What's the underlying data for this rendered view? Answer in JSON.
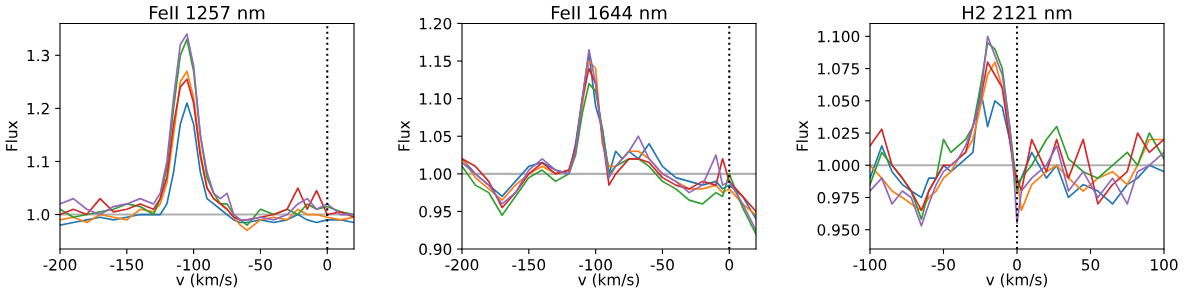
{
  "chart_data": [
    {
      "type": "line",
      "title": "FeII 1257 nm",
      "xlabel": "v (km/s)",
      "ylabel": "Flux",
      "x": [
        -200,
        -190,
        -180,
        -170,
        -160,
        -150,
        -140,
        -130,
        -125,
        -120,
        -115,
        -110,
        -105,
        -100,
        -95,
        -90,
        -85,
        -80,
        -75,
        -70,
        -65,
        -60,
        -50,
        -40,
        -30,
        -22,
        -15,
        -8,
        0,
        10,
        20
      ],
      "series": [
        {
          "color": "#1f77b4",
          "values": [
            0.98,
            0.985,
            0.99,
            0.995,
            0.99,
            0.995,
            1.0,
            1.0,
            1.0,
            1.02,
            1.08,
            1.17,
            1.21,
            1.17,
            1.08,
            1.03,
            1.02,
            1.01,
            1.0,
            0.99,
            0.985,
            0.985,
            0.99,
            0.985,
            0.99,
            1.0,
            0.99,
            0.985,
            0.99,
            0.99,
            0.985
          ]
        },
        {
          "color": "#ff7f0e",
          "values": [
            0.99,
            0.995,
            0.985,
            1.0,
            0.995,
            0.99,
            1.01,
            1.005,
            1.02,
            1.06,
            1.15,
            1.25,
            1.27,
            1.22,
            1.12,
            1.05,
            1.03,
            1.02,
            1.01,
            0.995,
            0.98,
            0.97,
            0.99,
            0.995,
            0.99,
            1.01,
            1.0,
            1.0,
            0.995,
            0.99,
            0.995
          ]
        },
        {
          "color": "#2ca02c",
          "values": [
            1.01,
            0.995,
            1.0,
            1.005,
            1.01,
            1.02,
            1.015,
            1.0,
            1.03,
            1.09,
            1.2,
            1.3,
            1.33,
            1.27,
            1.15,
            1.07,
            1.04,
            1.02,
            1.02,
            1.0,
            0.99,
            0.98,
            1.01,
            1.0,
            1.01,
            1.0,
            1.02,
            1.01,
            1.015,
            1.005,
            1.0
          ]
        },
        {
          "color": "#d62728",
          "values": [
            1.0,
            1.01,
            1.0,
            1.03,
            1.005,
            1.01,
            1.02,
            1.01,
            1.03,
            1.07,
            1.17,
            1.24,
            1.255,
            1.21,
            1.11,
            1.05,
            1.03,
            1.02,
            1.01,
            0.995,
            0.99,
            0.99,
            0.995,
            1.0,
            1.01,
            1.05,
            1.01,
            1.045,
            1.0,
            1.005,
            0.995
          ]
        },
        {
          "color": "#9467bd",
          "values": [
            1.02,
            1.03,
            1.01,
            1.0,
            1.015,
            1.02,
            1.03,
            1.02,
            1.04,
            1.1,
            1.22,
            1.32,
            1.34,
            1.28,
            1.15,
            1.08,
            1.04,
            1.03,
            1.04,
            1.0,
            0.99,
            0.99,
            0.995,
            0.99,
            1.0,
            1.02,
            1.03,
            1.01,
            1.02,
            1.0,
            1.0
          ]
        }
      ],
      "xlim": [
        -200,
        20
      ],
      "xticks": [
        -200,
        -150,
        -100,
        -50,
        0
      ],
      "ylim": [
        0.935,
        1.36
      ],
      "yticks": [
        {
          "value": 1.0,
          "label": "1.0"
        },
        1.1,
        1.2,
        1.3
      ],
      "ref_lines": [
        {
          "axis": "y",
          "value": 1,
          "color": "#b0b0b0",
          "line_style": "solid"
        },
        {
          "axis": "x",
          "value": 0,
          "color": "#000000",
          "line_style": "dotted"
        }
      ],
      "grid": false
    },
    {
      "type": "line",
      "title": "FeII 1644 nm",
      "xlabel": "v (km/s)",
      "ylabel": "Flux",
      "x": [
        -200,
        -190,
        -180,
        -170,
        -160,
        -150,
        -140,
        -130,
        -120,
        -115,
        -110,
        -105,
        -100,
        -95,
        -90,
        -85,
        -80,
        -75,
        -68,
        -60,
        -50,
        -40,
        -30,
        -20,
        -10,
        -5,
        0,
        10,
        20
      ],
      "series": [
        {
          "color": "#1f77b4",
          "values": [
            1.02,
            1.0,
            0.985,
            0.97,
            0.99,
            1.01,
            1.015,
            1.005,
            1.0,
            1.04,
            1.1,
            1.16,
            1.09,
            1.06,
            1.0,
            1.03,
            1.02,
            1.03,
            1.02,
            1.04,
            1.01,
            0.995,
            0.99,
            0.985,
            0.99,
            0.98,
            0.985,
            0.97,
            0.94
          ]
        },
        {
          "color": "#ff7f0e",
          "values": [
            1.02,
            0.995,
            0.98,
            0.965,
            0.985,
            1.0,
            1.01,
            1.0,
            1.005,
            1.03,
            1.09,
            1.15,
            1.14,
            1.04,
            1.01,
            1.01,
            1.02,
            1.03,
            1.03,
            1.02,
            1.0,
            0.99,
            0.98,
            0.98,
            0.985,
            0.975,
            0.98,
            0.96,
            0.945
          ]
        },
        {
          "color": "#2ca02c",
          "values": [
            1.01,
            0.985,
            0.975,
            0.945,
            0.97,
            0.995,
            1.005,
            0.99,
            1.0,
            1.025,
            1.08,
            1.12,
            1.11,
            1.06,
            1.0,
            1.01,
            1.015,
            1.02,
            1.02,
            1.01,
            0.99,
            0.98,
            0.965,
            0.96,
            0.975,
            0.97,
            1.0,
            0.955,
            0.92
          ]
        },
        {
          "color": "#d62728",
          "values": [
            1.02,
            1.01,
            0.99,
            0.955,
            0.975,
            1.0,
            1.015,
            1.0,
            1.005,
            1.035,
            1.1,
            1.14,
            1.12,
            1.05,
            0.985,
            1.0,
            1.01,
            1.02,
            1.02,
            1.015,
            0.995,
            0.985,
            0.98,
            0.99,
            0.985,
            1.02,
            0.99,
            0.97,
            0.95
          ]
        },
        {
          "color": "#9467bd",
          "values": [
            1.015,
            1.0,
            0.985,
            0.96,
            0.975,
            1.005,
            1.02,
            1.005,
            1.0,
            1.03,
            1.1,
            1.165,
            1.12,
            1.05,
            0.995,
            1.01,
            1.02,
            1.03,
            1.05,
            1.02,
            1.0,
            0.99,
            0.975,
            0.985,
            1.025,
            0.985,
            0.99,
            0.96,
            0.925
          ]
        }
      ],
      "xlim": [
        -200,
        20
      ],
      "xticks": [
        -200,
        -150,
        -100,
        -50,
        0
      ],
      "ylim": [
        0.9,
        1.2
      ],
      "yticks": [
        {
          "value": 0.9,
          "label": "0.90"
        },
        {
          "value": 0.95,
          "label": "0.95"
        },
        {
          "value": 1.0,
          "label": "1.00"
        },
        {
          "value": 1.05,
          "label": "1.05"
        },
        {
          "value": 1.1,
          "label": "1.10"
        },
        {
          "value": 1.15,
          "label": "1.15"
        },
        {
          "value": 1.2,
          "label": "1.20"
        }
      ],
      "ref_lines": [
        {
          "axis": "y",
          "value": 1,
          "color": "#b0b0b0",
          "line_style": "solid"
        },
        {
          "axis": "x",
          "value": 0,
          "color": "#000000",
          "line_style": "dotted"
        }
      ],
      "grid": false
    },
    {
      "type": "line",
      "title": "H2 2121 nm",
      "xlabel": "v (km/s)",
      "ylabel": "Flux",
      "x": [
        -100,
        -92,
        -85,
        -78,
        -72,
        -65,
        -60,
        -55,
        -50,
        -45,
        -40,
        -35,
        -30,
        -25,
        -20,
        -15,
        -10,
        -5,
        -2,
        0,
        3,
        10,
        20,
        27,
        35,
        45,
        55,
        65,
        75,
        82,
        90,
        100
      ],
      "series": [
        {
          "color": "#1f77b4",
          "values": [
            0.99,
            1.015,
            0.995,
            0.985,
            0.98,
            0.975,
            0.99,
            0.99,
            1.0,
            0.995,
            1.0,
            1.005,
            1.01,
            1.06,
            1.03,
            1.05,
            1.045,
            1.02,
            1.0,
            0.985,
            0.99,
            1.01,
            0.99,
            1.0,
            0.975,
            0.985,
            0.98,
            0.97,
            0.985,
            0.99,
            1.0,
            0.995
          ]
        },
        {
          "color": "#ff7f0e",
          "values": [
            1.0,
            0.99,
            0.98,
            0.975,
            0.97,
            0.965,
            0.975,
            0.98,
            0.99,
            0.995,
            1.005,
            1.01,
            1.02,
            1.045,
            1.07,
            1.08,
            1.06,
            1.03,
            1.0,
            0.99,
            0.965,
            0.985,
            0.995,
            1.0,
            0.99,
            0.98,
            0.99,
            0.995,
            0.985,
            1.0,
            1.02,
            1.02
          ]
        },
        {
          "color": "#2ca02c",
          "values": [
            0.985,
            1.01,
            1.0,
            0.99,
            0.98,
            0.958,
            0.98,
            0.99,
            1.02,
            1.01,
            1.015,
            1.02,
            1.03,
            1.06,
            1.095,
            1.09,
            1.075,
            1.03,
            1.0,
            0.98,
            0.99,
            1.0,
            1.02,
            1.03,
            1.005,
            0.995,
            0.99,
            1.0,
            1.01,
            1.0,
            1.025,
            1.005
          ]
        },
        {
          "color": "#d62728",
          "values": [
            1.015,
            1.028,
            1.0,
            0.99,
            0.98,
            0.965,
            0.98,
            0.99,
            1.0,
            1.0,
            1.005,
            1.01,
            1.03,
            1.05,
            1.08,
            1.07,
            1.06,
            1.02,
            0.995,
            0.99,
            0.98,
            1.02,
            0.995,
            1.02,
            0.99,
            1.02,
            0.97,
            0.985,
            0.995,
            1.025,
            1.01,
            1.02
          ]
        },
        {
          "color": "#9467bd",
          "values": [
            0.98,
            0.99,
            0.97,
            0.98,
            0.975,
            0.953,
            0.97,
            0.985,
            0.995,
            1.0,
            1.005,
            1.015,
            1.03,
            1.05,
            1.1,
            1.085,
            1.07,
            1.03,
            0.99,
            0.955,
            0.98,
            0.99,
            1.0,
            1.015,
            0.98,
            0.995,
            0.975,
            0.99,
            0.97,
            0.995,
            1.0,
            1.01
          ]
        }
      ],
      "xlim": [
        -100,
        100
      ],
      "xticks": [
        -100,
        -50,
        0,
        50,
        100
      ],
      "ylim": [
        0.935,
        1.11
      ],
      "yticks": [
        {
          "value": 0.95,
          "label": "0.950"
        },
        {
          "value": 0.975,
          "label": "0.975"
        },
        {
          "value": 1.0,
          "label": "1.000"
        },
        {
          "value": 1.025,
          "label": "1.025"
        },
        {
          "value": 1.05,
          "label": "1.050"
        },
        {
          "value": 1.075,
          "label": "1.075"
        },
        {
          "value": 1.1,
          "label": "1.100"
        }
      ],
      "ref_lines": [
        {
          "axis": "y",
          "value": 1,
          "color": "#b0b0b0",
          "line_style": "solid"
        },
        {
          "axis": "x",
          "value": 0,
          "color": "#000000",
          "line_style": "dotted"
        }
      ],
      "grid": false
    }
  ]
}
